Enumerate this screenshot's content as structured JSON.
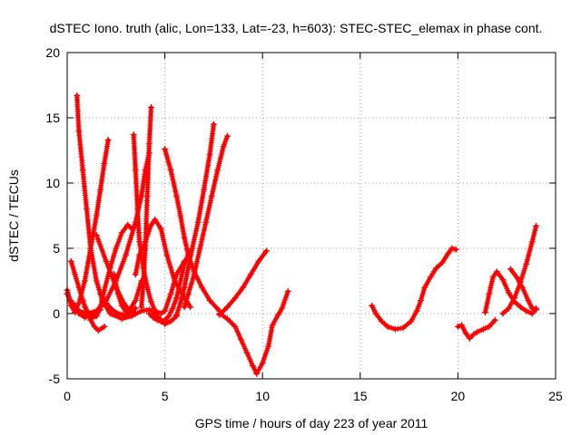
{
  "chart_data": {
    "type": "scatter",
    "title": "dSTEC Iono. truth (alic, Lon=133, Lat=-23, h=603): STEC-STEC_elemax in phase cont.",
    "xlabel": "GPS time / hours of day 223 of year 2011",
    "ylabel": "dSTEC  / TECUs",
    "xlim": [
      0,
      25
    ],
    "ylim": [
      -5,
      20
    ],
    "xticks": [
      0,
      5,
      10,
      15,
      20,
      25
    ],
    "yticks": [
      -5,
      0,
      5,
      10,
      15,
      20
    ],
    "grid": true,
    "marker": "+",
    "colors": {
      "series": "#ff0000",
      "grid": "#a0a0a0",
      "axis": "#000000"
    },
    "series": [
      {
        "x": [
          0.0,
          0.2,
          0.4,
          0.6,
          0.9,
          1.2,
          1.5,
          1.7,
          1.9,
          2.1
        ],
        "y": [
          1.8,
          0.6,
          0.1,
          0.8,
          2.5,
          5.0,
          7.5,
          9.5,
          11.5,
          13.3
        ]
      },
      {
        "x": [
          0.5,
          0.6,
          0.8,
          1.0,
          1.2,
          1.5,
          1.8,
          2.2,
          2.8,
          3.3,
          3.8,
          4.2,
          4.5,
          4.8,
          5.0,
          5.3,
          5.6
        ],
        "y": [
          16.7,
          14.0,
          11.0,
          8.0,
          5.0,
          2.5,
          1.0,
          0.0,
          -0.4,
          -0.2,
          0.2,
          0.3,
          0.0,
          -0.5,
          -0.8,
          -0.6,
          -0.2
        ]
      },
      {
        "x": [
          0.0,
          0.2,
          0.4,
          0.6,
          0.9,
          1.3,
          1.7
        ],
        "y": [
          1.5,
          0.9,
          0.4,
          0.0,
          -0.3,
          -0.1,
          0.3
        ]
      },
      {
        "x": [
          0.3,
          0.6,
          1.0,
          1.5,
          2.0,
          2.5,
          3.0,
          3.5,
          3.8,
          4.0,
          4.2
        ],
        "y": [
          0.8,
          0.2,
          0.0,
          0.2,
          1.0,
          2.5,
          4.5,
          7.0,
          9.0,
          11.0,
          12.3
        ]
      },
      {
        "x": [
          1.5,
          2.0,
          2.5,
          2.9,
          3.2,
          3.5
        ],
        "y": [
          6.0,
          4.0,
          2.0,
          0.8,
          0.2,
          0.0
        ]
      },
      {
        "x": [
          2.4,
          2.6,
          2.8,
          3.0,
          3.2,
          3.5,
          3.8
        ],
        "y": [
          3.0,
          1.5,
          0.6,
          0.2,
          0.3,
          1.0,
          2.5
        ]
      },
      {
        "x": [
          0.9,
          1.1,
          1.3,
          1.5,
          1.7,
          1.9,
          2.2,
          2.5,
          2.8,
          3.1,
          3.3
        ],
        "y": [
          0.5,
          0.0,
          -0.3,
          -0.2,
          0.5,
          1.8,
          3.5,
          5.0,
          6.2,
          6.8,
          6.5
        ]
      },
      {
        "x": [
          0.2,
          0.4,
          0.6,
          0.8,
          1.0,
          1.2,
          1.4,
          1.6,
          1.9
        ],
        "y": [
          4.0,
          3.0,
          2.0,
          1.0,
          0.2,
          -0.5,
          -1.0,
          -1.3,
          -1.0
        ]
      },
      {
        "x": [
          1.7,
          2.0,
          2.3,
          2.6,
          2.9,
          3.2,
          3.5
        ],
        "y": [
          1.5,
          0.8,
          0.3,
          0.0,
          -0.1,
          0.0,
          0.4
        ]
      },
      {
        "x": [
          3.4,
          3.5,
          3.6,
          3.7,
          3.9,
          4.1,
          4.3,
          4.5,
          4.8,
          5.0,
          5.3,
          5.6,
          6.0,
          6.3
        ],
        "y": [
          13.7,
          11.0,
          8.0,
          5.5,
          3.5,
          2.0,
          0.9,
          0.2,
          0.0,
          0.2,
          1.5,
          3.0,
          4.0,
          4.5
        ]
      },
      {
        "x": [
          3.5,
          3.7,
          4.0,
          4.3,
          4.5,
          4.8,
          5.1,
          5.5,
          5.9,
          6.3
        ],
        "y": [
          3.0,
          4.5,
          5.5,
          6.8,
          7.2,
          6.5,
          4.5,
          2.5,
          1.5,
          0.5
        ]
      },
      {
        "x": [
          3.8,
          3.9,
          4.0,
          4.1,
          4.2,
          4.3
        ],
        "y": [
          0.5,
          2.5,
          5.0,
          9.0,
          13.0,
          15.8
        ]
      },
      {
        "x": [
          4.2,
          4.4,
          4.6,
          4.8,
          5.0,
          5.2,
          5.4,
          5.6,
          5.8,
          6.0,
          6.2,
          6.4
        ],
        "y": [
          0.0,
          -0.3,
          -0.5,
          -0.6,
          -0.5,
          -0.2,
          0.4,
          1.2,
          2.5,
          3.8,
          4.5,
          5.0
        ]
      },
      {
        "x": [
          5.0,
          5.3,
          5.6,
          5.8,
          6.0,
          6.2,
          6.5,
          6.9,
          7.3,
          7.8
        ],
        "y": [
          12.6,
          11.0,
          9.0,
          7.5,
          5.8,
          4.5,
          3.2,
          2.0,
          1.0,
          0.2
        ]
      },
      {
        "x": [
          5.6,
          5.8,
          6.0,
          6.2,
          6.4,
          6.7,
          7.0,
          7.3,
          7.5
        ],
        "y": [
          -0.1,
          0.8,
          2.0,
          3.5,
          5.0,
          7.0,
          9.5,
          12.2,
          14.5
        ]
      },
      {
        "x": [
          6.0,
          6.2,
          6.5,
          6.8,
          7.1,
          7.4,
          7.7,
          8.0,
          8.2
        ],
        "y": [
          0.5,
          1.5,
          3.0,
          5.0,
          7.0,
          9.0,
          11.0,
          12.8,
          13.6
        ]
      },
      {
        "x": [
          7.8,
          8.2,
          8.6,
          8.9,
          9.2,
          9.5,
          9.7
        ],
        "y": [
          0.0,
          -0.4,
          -1.0,
          -2.0,
          -3.0,
          -4.0,
          -4.6
        ]
      },
      {
        "x": [
          9.7,
          10.0,
          10.3,
          10.5,
          10.8,
          11.0,
          11.3
        ],
        "y": [
          -4.6,
          -3.8,
          -2.5,
          -0.9,
          -0.1,
          0.4,
          1.7
        ]
      },
      {
        "x": [
          7.8,
          8.2,
          8.6,
          9.0,
          9.4,
          9.8,
          10.2
        ],
        "y": [
          -0.1,
          0.5,
          1.2,
          2.0,
          3.0,
          4.0,
          4.8
        ]
      },
      {
        "x": [
          15.6,
          15.8,
          16.1,
          16.4,
          16.8,
          17.2,
          17.6,
          17.9,
          18.1,
          18.3,
          18.6,
          18.9,
          19.2,
          19.5,
          19.7,
          19.9
        ],
        "y": [
          0.6,
          0.0,
          -0.6,
          -1.0,
          -1.2,
          -1.1,
          -0.6,
          0.2,
          1.0,
          2.0,
          2.8,
          3.5,
          3.9,
          4.6,
          5.0,
          4.9
        ]
      },
      {
        "x": [
          20.0,
          20.2,
          20.4,
          20.6,
          20.8,
          21.0,
          21.3,
          21.6,
          21.9
        ],
        "y": [
          -1.0,
          -0.9,
          -1.5,
          -1.9,
          -1.6,
          -1.4,
          -1.2,
          -1.0,
          -0.5
        ]
      },
      {
        "x": [
          21.4,
          21.6,
          21.8,
          22.0,
          22.3,
          22.6,
          22.9,
          23.2,
          23.5,
          23.8,
          24.0
        ],
        "y": [
          0.1,
          1.5,
          2.8,
          3.2,
          2.6,
          1.6,
          0.9,
          0.5,
          0.2,
          0.0,
          0.4
        ]
      },
      {
        "x": [
          22.7,
          23.0,
          23.3,
          23.6,
          23.8,
          24.0
        ],
        "y": [
          3.4,
          2.8,
          2.0,
          1.0,
          0.4,
          0.3
        ]
      },
      {
        "x": [
          22.3,
          22.6,
          22.9,
          23.2,
          23.5,
          23.8,
          24.0
        ],
        "y": [
          0.0,
          0.4,
          1.2,
          2.4,
          3.8,
          5.5,
          6.7
        ]
      }
    ]
  }
}
